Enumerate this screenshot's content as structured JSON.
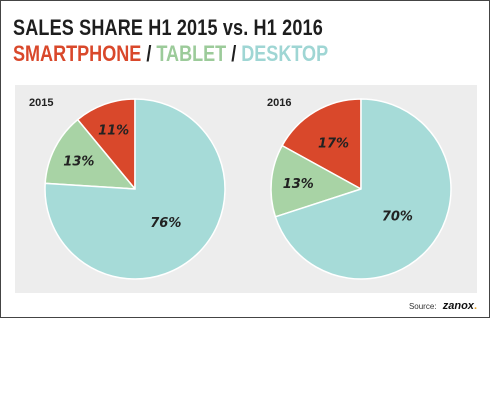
{
  "title": "SALES SHARE H1 2015 vs. H1 2016",
  "subtitle": {
    "smartphone": "SMARTPHONE",
    "tablet": "TABLET",
    "desktop": "DESKTOP",
    "separator": "/"
  },
  "source": {
    "label": "Source:",
    "brand": "zanox",
    "dot": "."
  },
  "colors": {
    "smartphone": "#d9482b",
    "tablet": "#a8d3a5",
    "desktop": "#a6dbd8",
    "panel": "#ededed"
  },
  "chart_data": [
    {
      "type": "pie",
      "title": "2015",
      "categories": [
        "SMARTPHONE",
        "TABLET",
        "DESKTOP"
      ],
      "values": [
        11,
        13,
        76
      ],
      "labels": [
        "11%",
        "13%",
        "76%"
      ]
    },
    {
      "type": "pie",
      "title": "2016",
      "categories": [
        "SMARTPHONE",
        "TABLET",
        "DESKTOP"
      ],
      "values": [
        17,
        13,
        70
      ],
      "labels": [
        "17%",
        "13%",
        "70%"
      ]
    }
  ]
}
